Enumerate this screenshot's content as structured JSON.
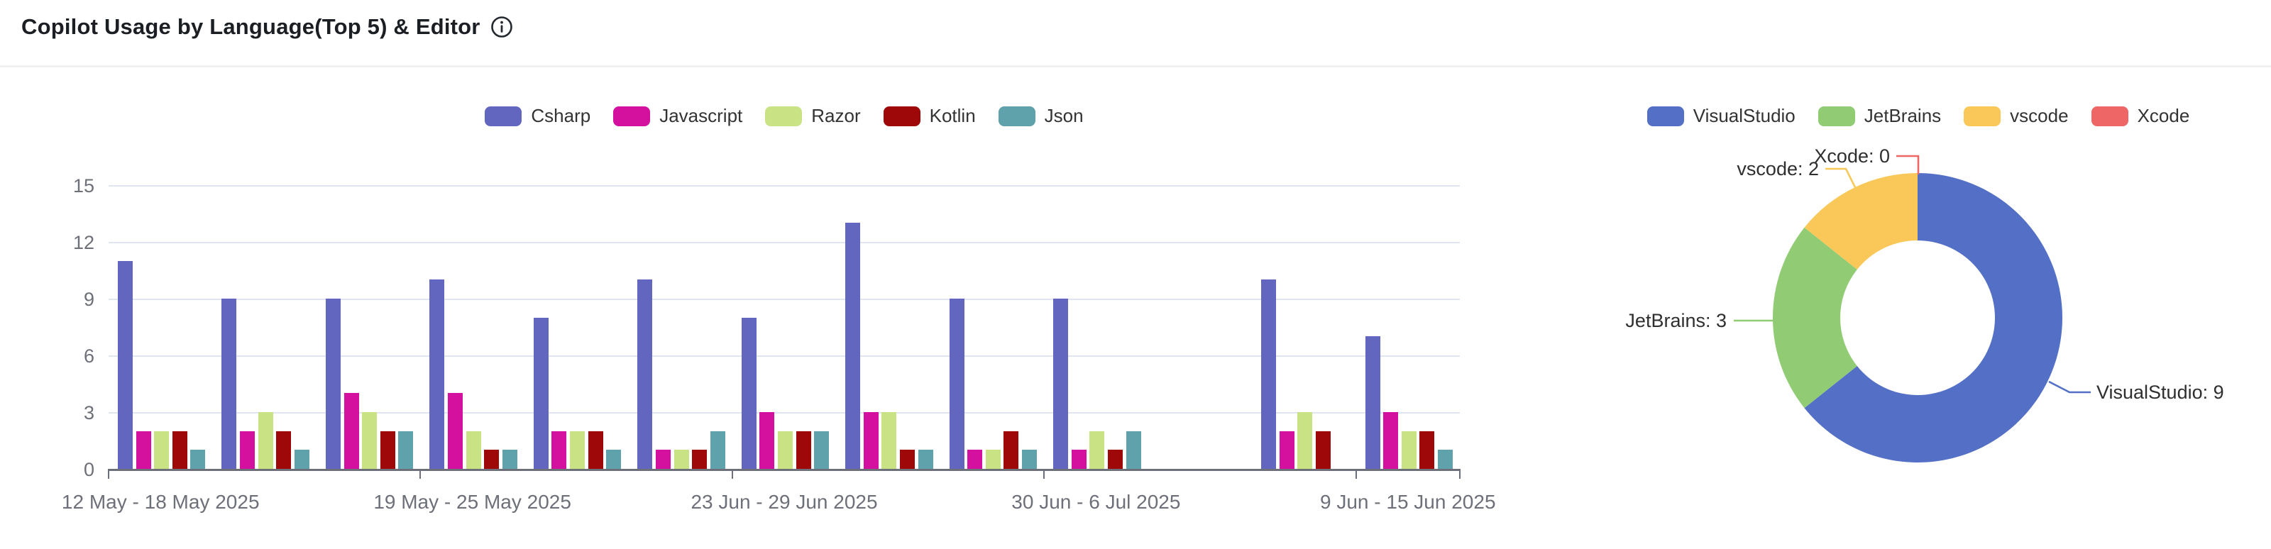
{
  "header": {
    "title": "Copilot Usage by Language(Top 5) & Editor",
    "info_icon": "info-icon"
  },
  "chart_data": [
    {
      "type": "bar",
      "title": "Copilot Usage by Language(Top 5) & Editor",
      "categories": [
        "12 May - 18 May 2025",
        "",
        "",
        "19 May - 25 May 2025",
        "",
        "",
        "23 Jun - 29 Jun 2025",
        "",
        "",
        "30 Jun - 6 Jul 2025",
        "",
        "",
        "9 Jun - 15 Jun 2025"
      ],
      "visible_x_tick_labels": [
        "12 May - 18 May 2025",
        "19 May - 25 May 2025",
        "23 Jun - 29 Jun 2025",
        "30 Jun - 6 Jul 2025",
        "9 Jun - 15 Jun 2025"
      ],
      "labeled_category_indices": [
        0,
        3,
        6,
        9,
        12
      ],
      "series": [
        {
          "name": "Csharp",
          "color": "#6366bf",
          "values": [
            11,
            9,
            9,
            10,
            8,
            10,
            8,
            13,
            9,
            9,
            0,
            10,
            7
          ]
        },
        {
          "name": "Javascript",
          "color": "#d4109e",
          "values": [
            2,
            2,
            4,
            4,
            2,
            1,
            3,
            3,
            1,
            1,
            0,
            2,
            3
          ]
        },
        {
          "name": "Razor",
          "color": "#c9e283",
          "values": [
            2,
            3,
            3,
            2,
            2,
            1,
            2,
            3,
            1,
            2,
            0,
            3,
            2
          ]
        },
        {
          "name": "Kotlin",
          "color": "#9e0808",
          "values": [
            2,
            2,
            2,
            1,
            2,
            1,
            2,
            1,
            2,
            1,
            0,
            2,
            2
          ]
        },
        {
          "name": "Json",
          "color": "#5fa2ab",
          "values": [
            1,
            1,
            2,
            1,
            1,
            2,
            2,
            1,
            1,
            2,
            0,
            0,
            1
          ]
        }
      ],
      "ylabel": "",
      "xlabel": "",
      "ylim": [
        0,
        15
      ],
      "yticks": [
        0,
        3,
        6,
        9,
        12,
        15
      ],
      "grid": true,
      "legend_position": "top-center",
      "axis_color": "#6e7079",
      "gridline_color": "#e0e6f1"
    },
    {
      "type": "pie",
      "donut": true,
      "labels": [
        "VisualStudio",
        "JetBrains",
        "vscode",
        "Xcode"
      ],
      "values": [
        9,
        3,
        2,
        0
      ],
      "colors": [
        "#5470c6",
        "#91cc75",
        "#fac858",
        "#ee6666"
      ],
      "callouts": [
        "VisualStudio: 9",
        "JetBrains: 3",
        "vscode: 2",
        "Xcode: 0"
      ],
      "legend_position": "top-center"
    }
  ]
}
